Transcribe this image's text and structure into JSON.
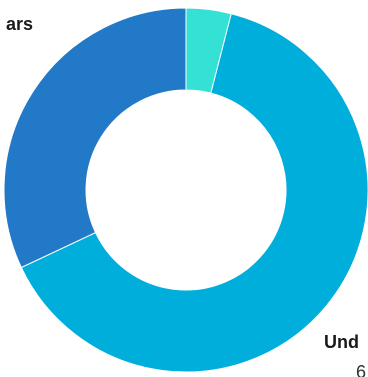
{
  "chart_data": {
    "type": "pie",
    "variant": "donut",
    "title": "",
    "legend": "none",
    "slices": [
      {
        "label": "",
        "value": 4.0,
        "color": "#33e2d4"
      },
      {
        "label": "",
        "value": 64.0,
        "color": "#00aedb"
      },
      {
        "label": "",
        "value": 32.0,
        "color": "#2279c8"
      }
    ],
    "slice_labels": [
      {
        "name": "ars",
        "value": ""
      },
      {
        "name": "Und",
        "value": "6"
      }
    ]
  }
}
